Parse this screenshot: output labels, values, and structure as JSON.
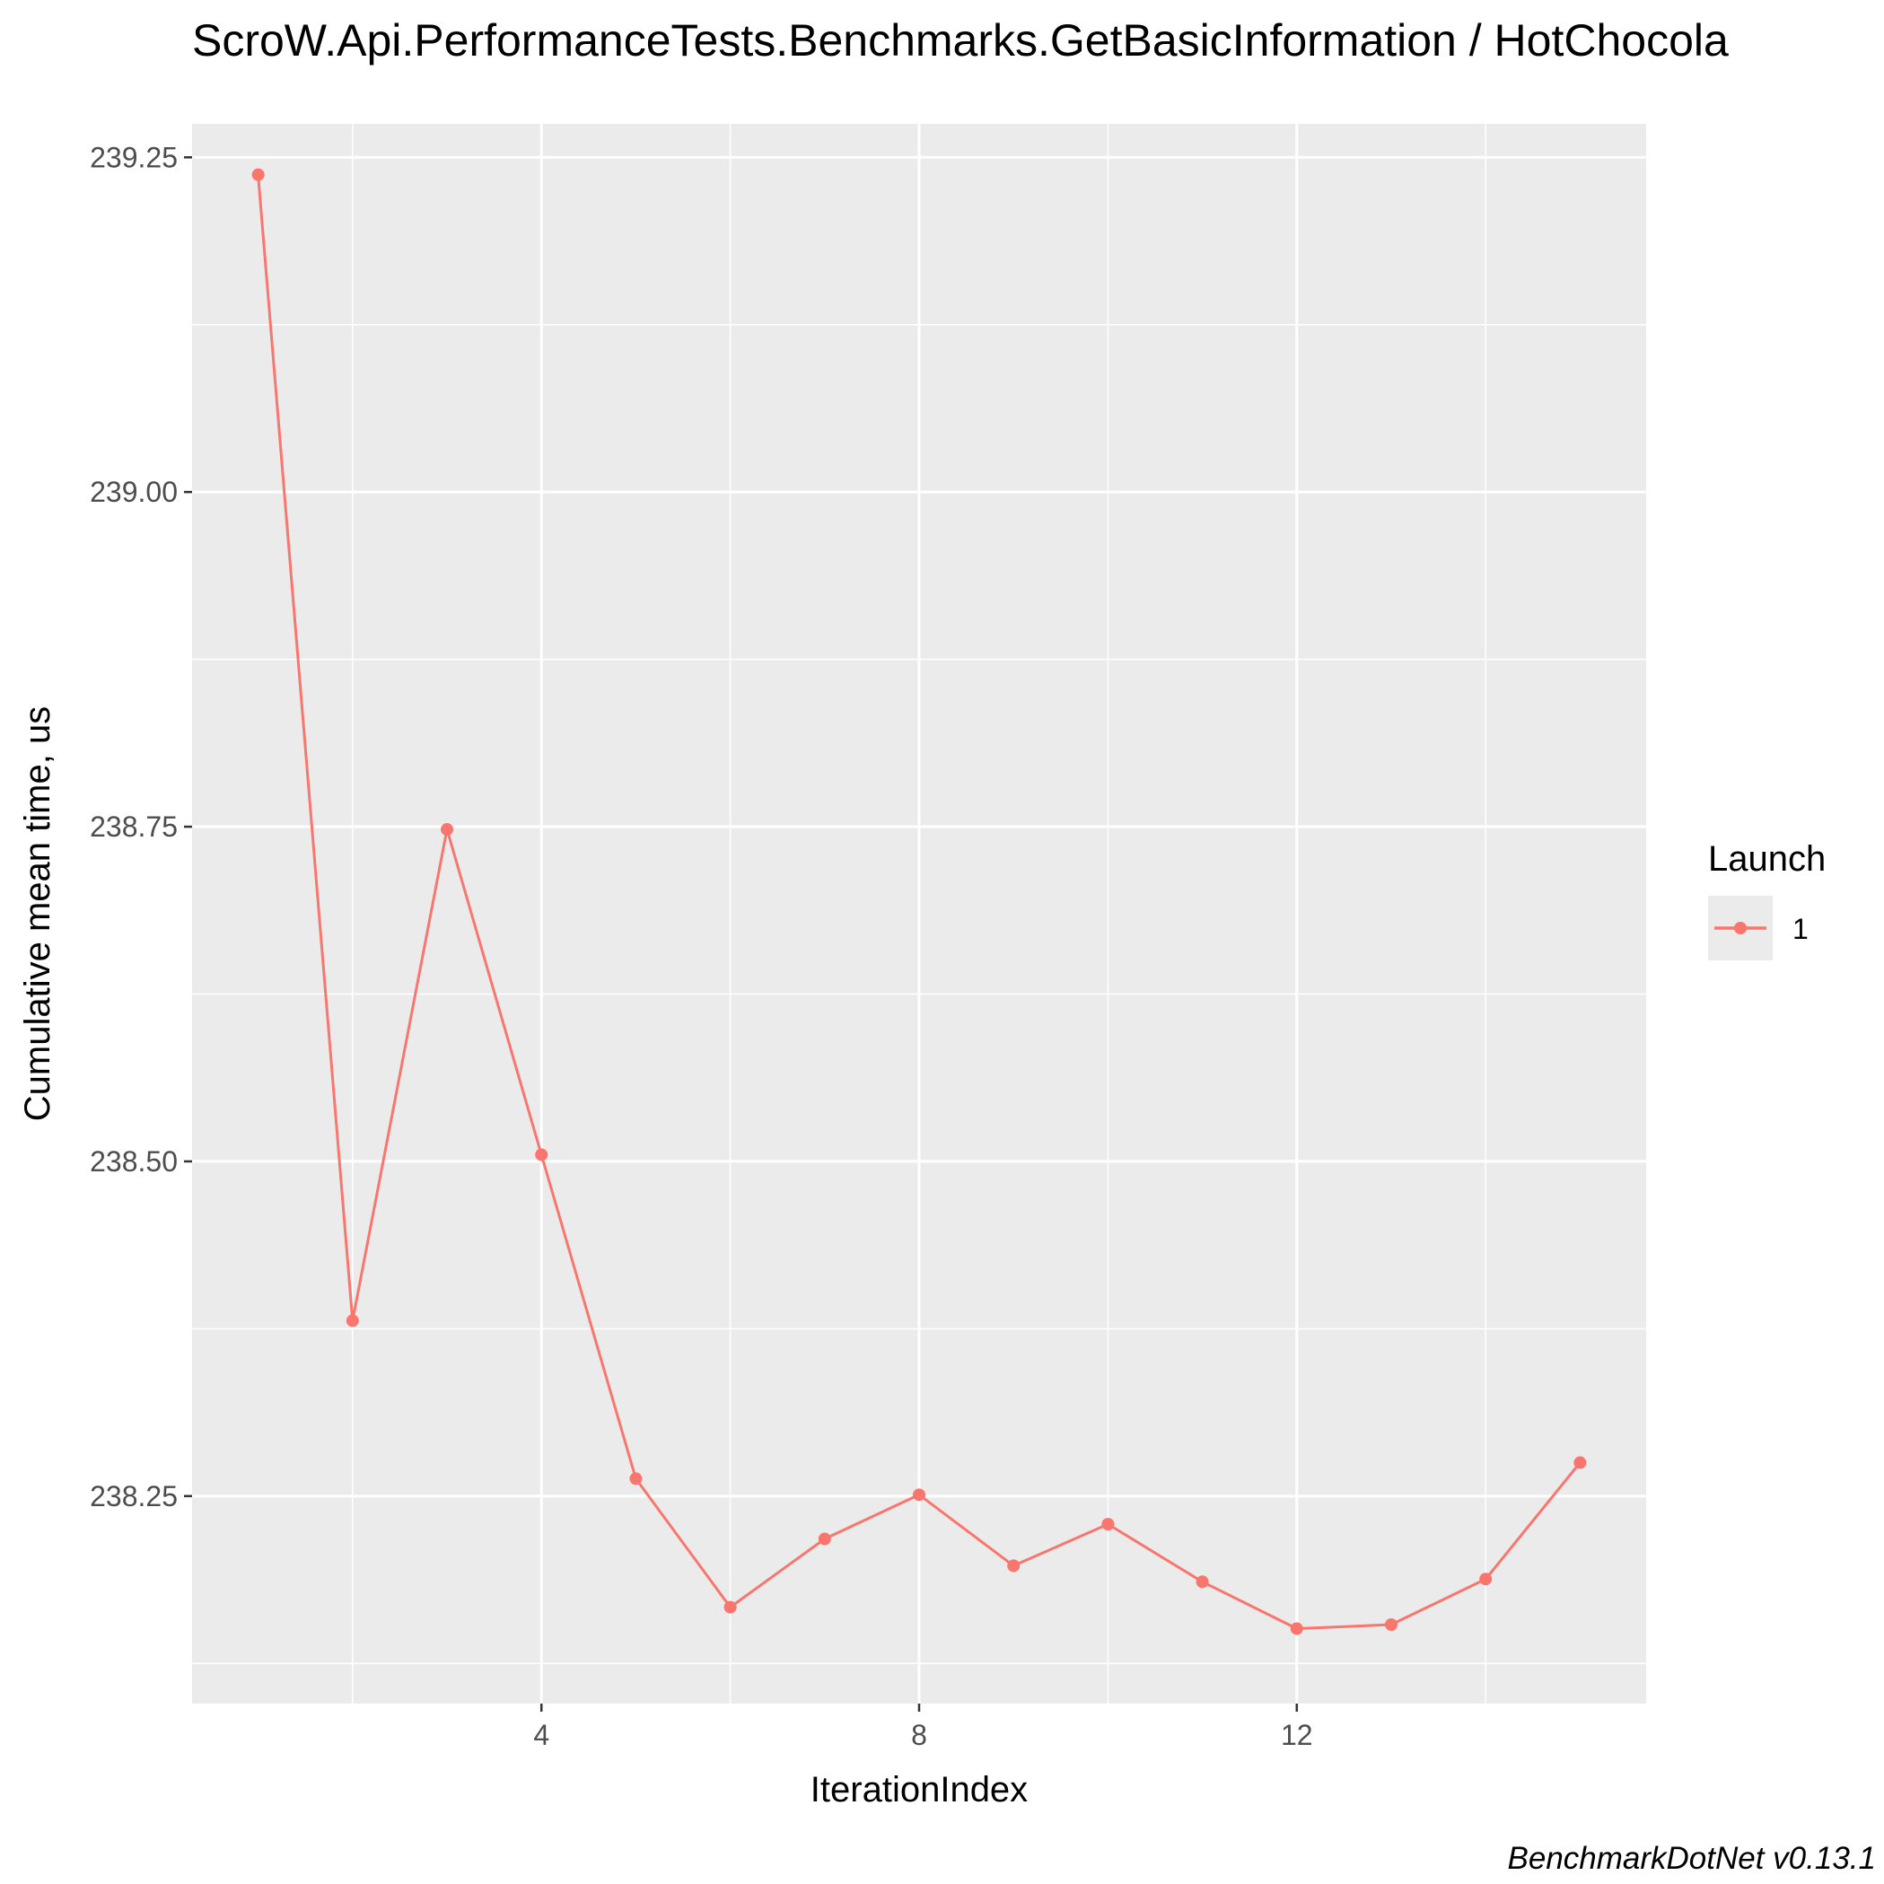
{
  "chart_data": {
    "type": "line",
    "title": "ScroW.Api.PerformanceTests.Benchmarks.GetBasicInformation / HotChocola",
    "xlabel": "IterationIndex",
    "ylabel": "Cumulative mean time, us",
    "caption": "BenchmarkDotNet v0.13.1",
    "x_ticks": [
      "4",
      "8",
      "12"
    ],
    "y_ticks": [
      "238.25",
      "238.50",
      "238.75",
      "239.00",
      "239.25"
    ],
    "xlim": [
      0.3,
      15.7
    ],
    "ylim": [
      238.095,
      239.275
    ],
    "grid": true,
    "legend": {
      "title": "Launch",
      "position": "right"
    },
    "colors": {
      "panel": "#ebebeb",
      "grid": "#ffffff",
      "series": "#f8766d"
    },
    "series": [
      {
        "name": "1",
        "x": [
          1,
          2,
          3,
          4,
          5,
          6,
          7,
          8,
          9,
          10,
          11,
          12,
          13,
          14,
          15
        ],
        "y": [
          239.237,
          238.381,
          238.748,
          238.505,
          238.263,
          238.167,
          238.218,
          238.251,
          238.198,
          238.229,
          238.186,
          238.151,
          238.154,
          238.188,
          238.275
        ]
      }
    ]
  }
}
